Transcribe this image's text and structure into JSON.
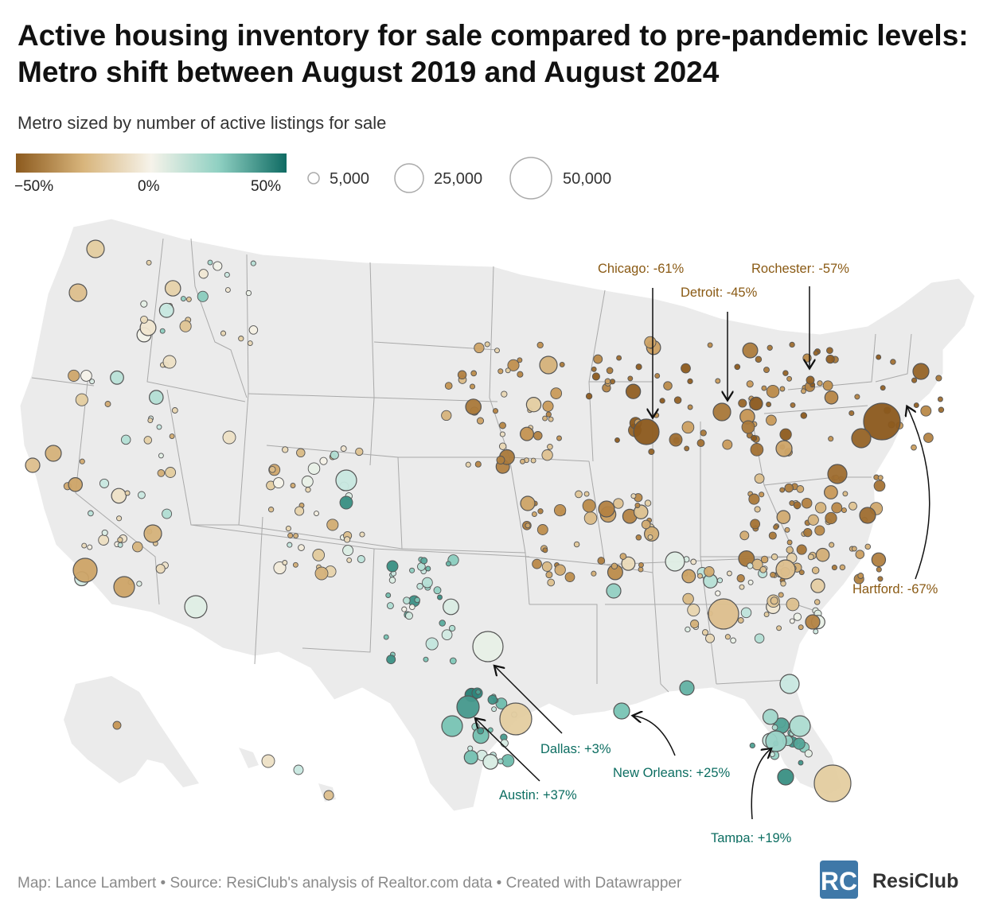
{
  "title": "Active housing inventory for sale compared to pre-pandemic levels: Metro shift between August 2019 and August 2024",
  "subtitle": "Metro sized by number of active listings for sale",
  "color_legend": {
    "min_label": "−50%",
    "mid_label": "0%",
    "max_label": "50%"
  },
  "size_legend": [
    {
      "label": "5,000",
      "value": 5000
    },
    {
      "label": "25,000",
      "value": 25000
    },
    {
      "label": "50,000",
      "value": 50000
    }
  ],
  "colors": {
    "neg": "#8c5a1e",
    "neutral": "#f6f3ea",
    "pos": "#0f6b63",
    "land": "#ececec",
    "border": "#9a9a9a",
    "anno_neg": "#8a5a14",
    "anno_pos": "#0d6e62",
    "logo": "#3f78a8"
  },
  "chart_data": {
    "type": "bubble-map",
    "title": "Active housing inventory for sale compared to pre-pandemic levels: Metro shift between August 2019 and August 2024",
    "color_scale": {
      "metric": "Change in active inventory, Aug 2019 vs Aug 2024",
      "min": -50,
      "mid": 0,
      "max": 50,
      "unit": "%"
    },
    "size_scale": {
      "metric": "Active listings for sale",
      "reference_values": [
        5000,
        25000,
        50000
      ]
    },
    "labeled_metros": [
      {
        "name": "Chicago",
        "change": -61,
        "label": "Chicago: -61%"
      },
      {
        "name": "Detroit",
        "change": -45,
        "label": "Detroit: -45%"
      },
      {
        "name": "Rochester",
        "change": -57,
        "label": "Rochester: -57%"
      },
      {
        "name": "Hartford",
        "change": -67,
        "label": "Hartford: -67%"
      },
      {
        "name": "Dallas",
        "change": 3,
        "label": "Dallas: +3%"
      },
      {
        "name": "Austin",
        "change": 37,
        "label": "Austin: +37%"
      },
      {
        "name": "New Orleans",
        "change": 25,
        "label": "New Orleans: +25%"
      },
      {
        "name": "Tampa",
        "change": 19,
        "label": "Tampa: +19%"
      }
    ]
  },
  "footer": "Map: Lance Lambert • Source: ResiClub's analysis of Realtor.com data • Created with Datawrapper",
  "logo": {
    "mark": "RC",
    "text": "ResiClub"
  }
}
